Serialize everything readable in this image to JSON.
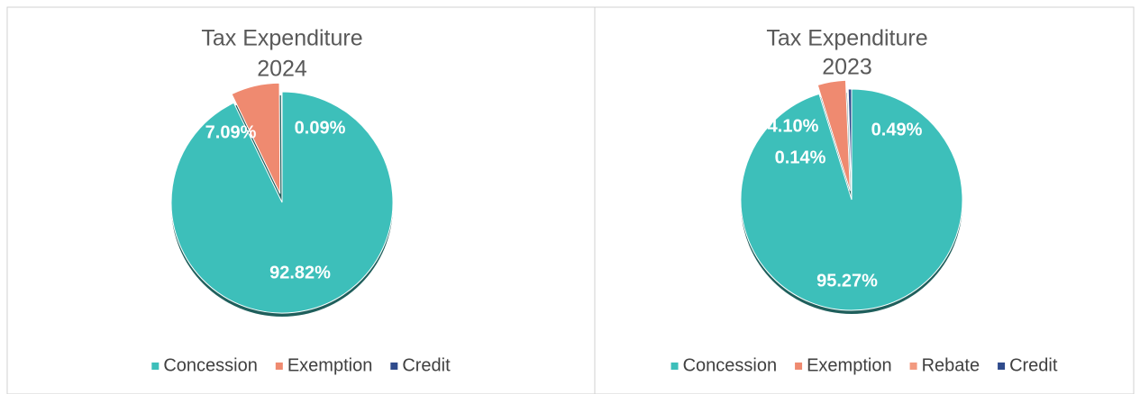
{
  "chart_data": [
    {
      "type": "pie",
      "title": "Tax Expenditure",
      "subtitle": "2024",
      "categories": [
        "Concession",
        "Exemption",
        "Credit"
      ],
      "values": [
        92.82,
        7.09,
        0.09
      ],
      "value_labels": [
        "92.82%",
        "7.09%",
        "0.09%"
      ],
      "colors": [
        "#3dbfba",
        "#ef8a70",
        "#2f4b8c"
      ],
      "exploded": [
        false,
        true,
        false
      ]
    },
    {
      "type": "pie",
      "title": "Tax Expenditure",
      "subtitle": "2023",
      "categories": [
        "Concession",
        "Exemption",
        "Rebate",
        "Credit"
      ],
      "values": [
        95.27,
        4.1,
        0.14,
        0.49
      ],
      "value_labels": [
        "95.27%",
        "4.10%",
        "0.14%",
        "0.49%"
      ],
      "colors": [
        "#3dbfba",
        "#ef8a70",
        "#f29a80",
        "#2f4b8c"
      ],
      "exploded": [
        false,
        true,
        false,
        false
      ]
    }
  ]
}
